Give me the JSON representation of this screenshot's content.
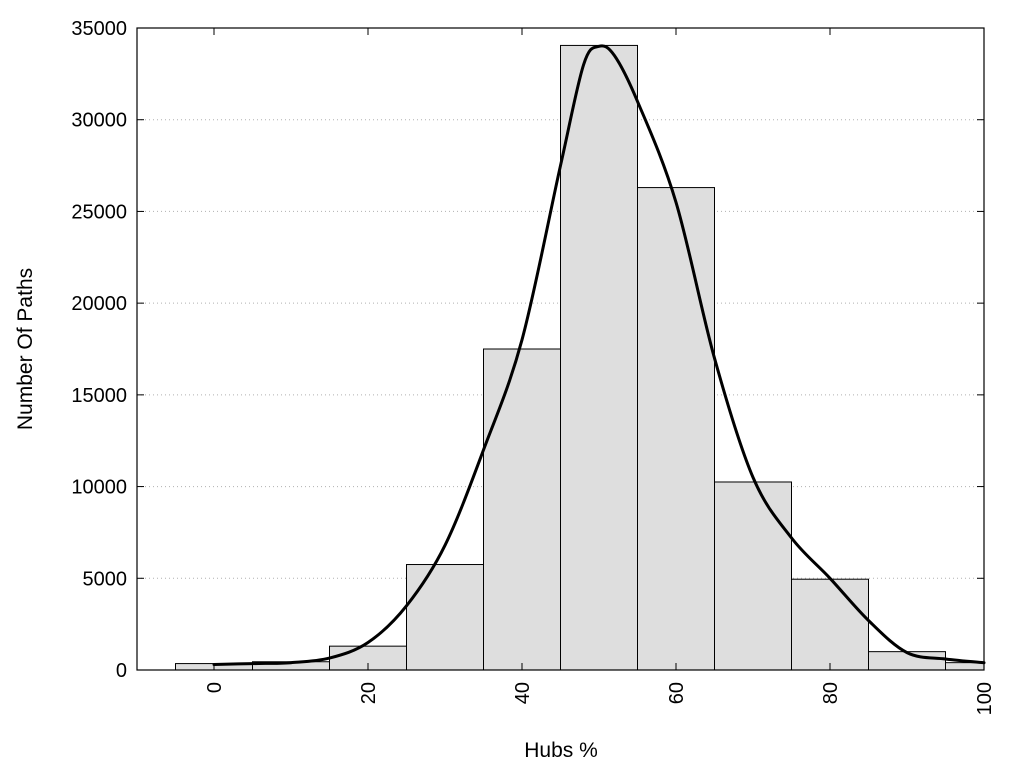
{
  "chart_data": {
    "type": "bar",
    "xlabel": "Hubs %",
    "ylabel": "Number Of Paths",
    "xlim": [
      -10,
      100
    ],
    "ylim": [
      0,
      35000
    ],
    "x_ticks": [
      0,
      20,
      40,
      60,
      80,
      100
    ],
    "y_ticks": [
      0,
      5000,
      10000,
      15000,
      20000,
      25000,
      30000,
      35000
    ],
    "grid": "horizontal-dotted",
    "bar_width": 10,
    "bar_color": "#dedede",
    "x": [
      0,
      10,
      20,
      30,
      40,
      50,
      60,
      70,
      80,
      90,
      100
    ],
    "values": [
      350,
      450,
      1300,
      5750,
      17500,
      34050,
      26300,
      10250,
      4950,
      1000,
      400
    ],
    "curve": {
      "x": [
        0,
        5,
        10,
        15,
        20,
        25,
        30,
        35,
        40,
        45,
        48,
        50,
        52,
        55,
        60,
        65,
        70,
        75,
        80,
        85,
        90,
        95,
        100
      ],
      "y": [
        300,
        350,
        400,
        650,
        1500,
        3500,
        6800,
        12000,
        18000,
        27500,
        33000,
        34000,
        33500,
        31000,
        25500,
        17000,
        10500,
        7200,
        5000,
        2700,
        950,
        600,
        400
      ],
      "color": "#000000"
    }
  }
}
